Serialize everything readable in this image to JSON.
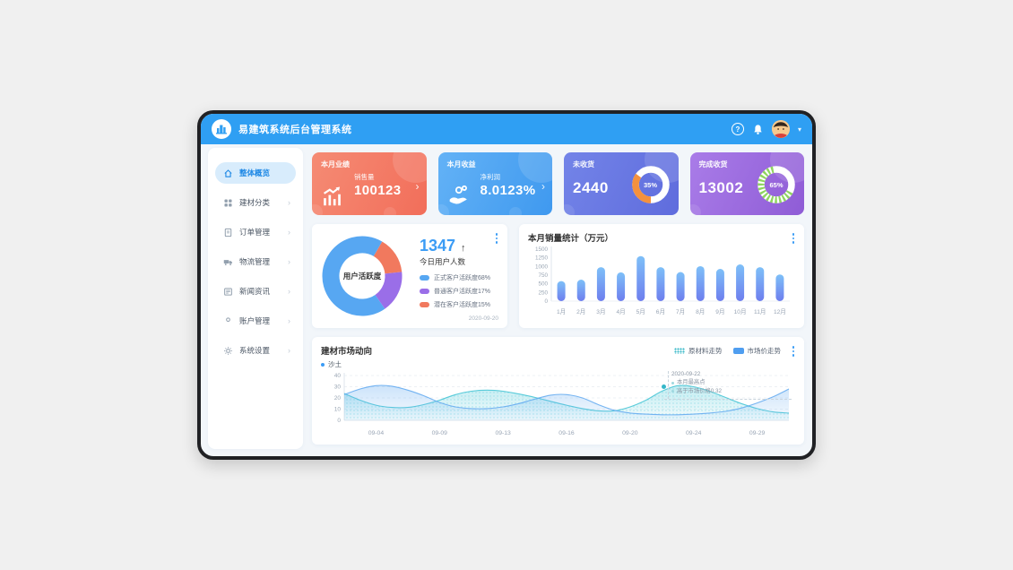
{
  "window": {
    "title": "易建筑系统后台管理系统"
  },
  "header": {
    "help_label": "?",
    "caret": "▾"
  },
  "sidebar": {
    "items": [
      {
        "label": "整体概览",
        "icon": "home-icon",
        "active": true,
        "arrow": ""
      },
      {
        "label": "建材分类",
        "icon": "category-icon",
        "active": false,
        "arrow": "›"
      },
      {
        "label": "订单管理",
        "icon": "orders-icon",
        "active": false,
        "arrow": "›"
      },
      {
        "label": "物流管理",
        "icon": "logistics-truck-icon",
        "active": false,
        "arrow": "›"
      },
      {
        "label": "新闻资讯",
        "icon": "news-icon",
        "active": false,
        "arrow": "›"
      },
      {
        "label": "账户管理",
        "icon": "account-icon",
        "active": false,
        "arrow": "›"
      },
      {
        "label": "系统设置",
        "icon": "settings-gear-icon",
        "active": false,
        "arrow": "›"
      }
    ]
  },
  "stat_cards": [
    {
      "title": "本月业绩",
      "label": "销售量",
      "value": "100123",
      "icon": "trend-up-chart-icon",
      "chevron": "›"
    },
    {
      "title": "本月收益",
      "label": "净利润",
      "value": "8.0123%",
      "icon": "hand-coins-icon",
      "chevron": "›"
    },
    {
      "title": "未收货",
      "value": "2440",
      "percent": 35,
      "percent_label": "35%",
      "arc_color": "#f5913e",
      "arc_style": "solid",
      "arc_start": 180
    },
    {
      "title": "完成收货",
      "value": "13002",
      "percent": 65,
      "percent_label": "65%",
      "arc_color": "#8fd460",
      "arc_style": "dashed",
      "arc_start": 118
    }
  ],
  "activity_card": {
    "center_label": "用户活跃度",
    "count": "1347",
    "trend_arrow": "↑",
    "count_label": "今日用户人数",
    "date": "2020-09-20",
    "legend": [
      {
        "label": "正式客户活跃度68%",
        "value": 68,
        "color": "#57a7f2"
      },
      {
        "label": "普通客户活跃度17%",
        "value": 17,
        "color": "#9a6ee8"
      },
      {
        "label": "潜在客户活跃度15%",
        "value": 15,
        "color": "#f1795e"
      }
    ]
  },
  "chart_data": [
    {
      "type": "pie",
      "title": "用户活跃度",
      "labels": [
        "正式客户活跃度",
        "普通客户活跃度",
        "潜在客户活跃度"
      ],
      "values": [
        68,
        17,
        15
      ],
      "colors": [
        "#57a7f2",
        "#9a6ee8",
        "#f1795e"
      ],
      "donut": true,
      "start_angle": 30,
      "draw_order": [
        2,
        1,
        0
      ],
      "legend_position": "right"
    },
    {
      "type": "bar",
      "title": "本月销量统计（万元）",
      "categories": [
        "1月",
        "2月",
        "3月",
        "4月",
        "5月",
        "6月",
        "7月",
        "8月",
        "9月",
        "10月",
        "11月",
        "12月"
      ],
      "values": [
        580,
        620,
        980,
        830,
        1300,
        980,
        840,
        1010,
        930,
        1060,
        980,
        770
      ],
      "xlabel": "",
      "ylabel": "",
      "ylim": [
        0,
        1500
      ],
      "yticks": [
        0,
        250,
        500,
        750,
        1000,
        1250,
        1500
      ],
      "bar_gradient": [
        "#7ec0f8",
        "#6e7eee"
      ],
      "grid": "off",
      "bar_shape": "rounded-pill"
    },
    {
      "type": "area",
      "title": "建材市场动向",
      "sub_label": "沙土",
      "x_ticks": [
        "09-04",
        "09-09",
        "09-13",
        "09-16",
        "09-20",
        "09-24",
        "09-29"
      ],
      "ylim": [
        0,
        40
      ],
      "yticks": [
        0,
        10,
        20,
        30,
        40
      ],
      "grid": "dashed-horizontal",
      "legend_position": "top-right",
      "series": [
        {
          "name": "原材料走势",
          "color": "#3fc3d4",
          "fill_style": "dotted",
          "values": [
            24,
            18,
            13.5,
            11.5,
            11.5,
            14,
            18,
            23,
            26,
            27,
            26,
            23.5,
            20.5,
            17,
            13.5,
            10.5,
            8.5,
            8.5,
            12,
            18,
            26,
            31,
            30,
            26,
            20.5,
            15,
            10.5,
            7.5,
            6.5
          ]
        },
        {
          "name": "市场价走势",
          "color": "#5fa8f0",
          "fill_style": "solid",
          "values": [
            23,
            28,
            31,
            30.5,
            27,
            22,
            16,
            12,
            10.5,
            10.5,
            12,
            15,
            19,
            22.5,
            23,
            20,
            14,
            9,
            6.5,
            5.5,
            5,
            5,
            5.5,
            6.5,
            8,
            11,
            15.5,
            21,
            28
          ]
        }
      ],
      "annotation": {
        "date": "2020-09-22",
        "lines": [
          "本月最高点",
          "高于市场价格0.32"
        ],
        "series": "原材料走势",
        "x_fraction": 0.72,
        "value": 30
      }
    }
  ]
}
